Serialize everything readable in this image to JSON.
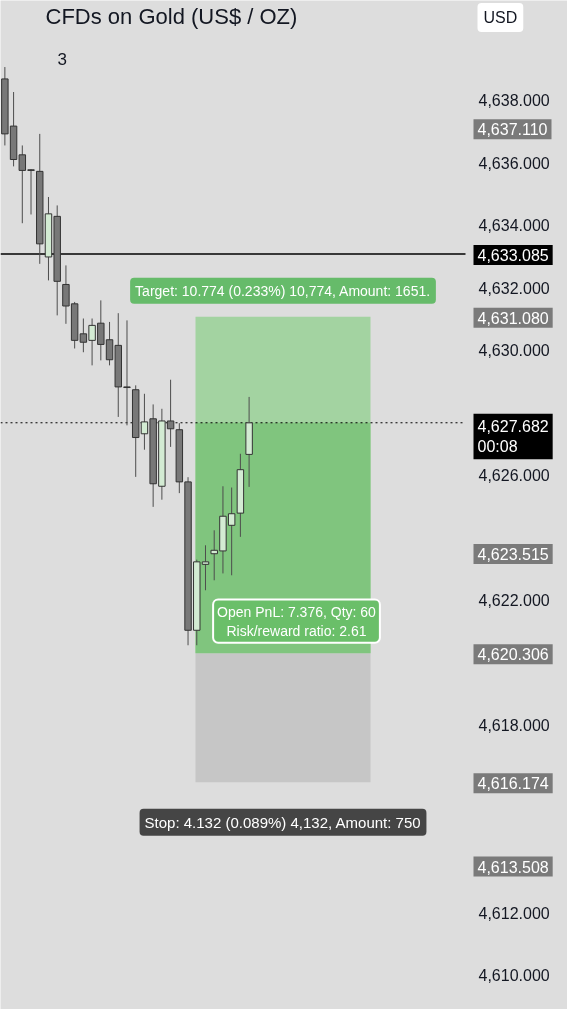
{
  "chart_data": {
    "type": "candlestick",
    "title": "CFDs on Gold (US$ / OZ)",
    "subtitle": "3",
    "ylabel": "USD",
    "categories": [
      null,
      null,
      null,
      null,
      null,
      null,
      null,
      null,
      null,
      null,
      null,
      null,
      null,
      null,
      null,
      null,
      null,
      null,
      null,
      null,
      null,
      null,
      null,
      null,
      null,
      null,
      null,
      null,
      null,
      null,
      null,
      null,
      null,
      null,
      null,
      null,
      null,
      null,
      null,
      null,
      null,
      null,
      null,
      null,
      null,
      null,
      null,
      null,
      null,
      null,
      null,
      null,
      null,
      null,
      null,
      null,
      null,
      null,
      null,
      null,
      null,
      null,
      null,
      null,
      null
    ],
    "ohlc": [
      [
        4638.69,
        4639.07,
        4636.56,
        4636.93
      ],
      [
        4637.18,
        4638.27,
        4635.89,
        4636.11
      ],
      [
        4636.26,
        4636.56,
        4634.07,
        4635.76
      ],
      [
        4635.78,
        4635.8,
        4634.35,
        4635.76
      ],
      [
        4635.73,
        4636.93,
        4632.77,
        4633.41
      ],
      [
        4632.99,
        4634.91,
        4632.24,
        4634.37
      ],
      [
        4634.29,
        4634.64,
        4631.12,
        4632.21
      ],
      [
        4632.11,
        4632.72,
        4630.85,
        4631.42
      ],
      [
        4631.49,
        4631.55,
        4630.06,
        4630.32
      ],
      [
        4630.53,
        4631.02,
        4629.94,
        4630.26
      ],
      [
        4630.32,
        4631.02,
        4629.52,
        4630.8
      ],
      [
        4630.87,
        4631.6,
        4629.68,
        4630.19
      ],
      [
        4630.34,
        4630.91,
        4629.52,
        4629.7
      ],
      [
        4630.16,
        4631.19,
        4627.87,
        4628.83
      ],
      [
        4628.83,
        4630.96,
        4627.6,
        4628.81
      ],
      [
        4628.74,
        4628.88,
        4625.95,
        4627.21
      ],
      [
        4627.33,
        4628.61,
        4626.82,
        4627.71
      ],
      [
        4627.81,
        4628.27,
        4624.99,
        4625.73
      ],
      [
        4625.65,
        4628.13,
        4625.22,
        4627.74
      ],
      [
        4627.74,
        4629.06,
        4626.91,
        4627.49
      ],
      [
        4627.46,
        4627.67,
        4625.43,
        4625.79
      ],
      [
        4625.79,
        4625.94,
        4620.56,
        4621.04
      ],
      [
        4621.04,
        4623.3,
        4620.56,
        4623.23
      ],
      [
        4623.15,
        4623.76,
        4622.32,
        4623.23
      ],
      [
        4623.49,
        4624.24,
        4622.64,
        4623.6
      ],
      [
        4623.58,
        4625.65,
        4622.86,
        4624.69
      ],
      [
        4624.4,
        4625.61,
        4622.8,
        4624.77
      ],
      [
        4624.79,
        4626.69,
        4624.03,
        4626.18
      ],
      [
        4626.67,
        4628.51,
        4625.63,
        4627.68
      ],
      null,
      null,
      null,
      null,
      null,
      null,
      null,
      null,
      null,
      null,
      null,
      null,
      null,
      null,
      null,
      null,
      null,
      null,
      null,
      null,
      null,
      null,
      null,
      null,
      null,
      null,
      null,
      null,
      null,
      null,
      null,
      null,
      null,
      null,
      null,
      null
    ],
    "colors": [
      "#787878",
      "#787878",
      "#787878",
      "#787878",
      "#787878",
      "#d3ebd3",
      "#787878",
      "#787878",
      "#787878",
      "#787878",
      "#d3ebd3",
      "#787878",
      "#787878",
      "#787878",
      "#787878",
      "#787878",
      "#d3ebd3",
      "#787878",
      "#d3ebd3",
      "#787878",
      "#787878",
      "#787878",
      "#d3ebd3",
      "#d3ebd3",
      "#d3ebd3",
      "#d3ebd3",
      "#d3ebd3",
      "#d3ebd3",
      "#d3ebd3",
      null,
      null,
      null,
      null,
      null,
      null,
      null,
      null,
      null,
      null,
      null,
      null,
      null,
      null,
      null,
      null,
      null,
      null,
      null,
      null,
      null,
      null,
      null,
      null,
      null,
      null,
      null,
      null,
      null,
      null,
      null,
      null,
      null,
      null,
      null,
      null
    ],
    "ylim": [
      4608.9,
      4641.2
    ],
    "yticks": [
      {
        "value": 4610,
        "label": "4,610.000"
      },
      {
        "value": 4612,
        "label": "4,612.000"
      },
      {
        "value": 4618,
        "label": "4,618.000"
      },
      {
        "value": 4622,
        "label": "4,622.000"
      },
      {
        "value": 4626,
        "label": "4,626.000"
      },
      {
        "value": 4630,
        "label": "4,630.000"
      },
      {
        "value": 4632,
        "label": "4,632.000"
      },
      {
        "value": 4634,
        "label": "4,634.000"
      },
      {
        "value": 4636,
        "label": "4,636.000"
      },
      {
        "value": 4638,
        "label": "4,638.000"
      }
    ],
    "grid": false,
    "ref_lines": [
      {
        "axis": "y",
        "value": 4633.085,
        "label": "4,633.085",
        "color": "#000000",
        "line_style": "solid"
      },
      {
        "axis": "y",
        "value": 4627.682,
        "label": "4,627.682\n00:08",
        "color": "#000000",
        "line_style": "dotted"
      }
    ],
    "bands": [
      {
        "axis": "y",
        "from": 4620.306,
        "to": 4631.08,
        "color": "#a3d3a1",
        "label": "Target: 10.774 (0.233%) 10,774, Amount: 1651."
      },
      {
        "axis": "y",
        "from": 4616.174,
        "to": 4620.306,
        "color": "#c6c6c6",
        "label": "Stop: 4.132 (0.089%) 4,132, Amount: 750"
      },
      {
        "axis": "y",
        "from": 4620.306,
        "to": 4627.682,
        "color": "#80c57e"
      }
    ],
    "annotations": [
      "Open PnL: 7.376, Qty: 60\nRisk/reward ratio: 2.61",
      "4,637.110",
      "4,631.080",
      "4,623.515",
      "4,620.306",
      "4,616.174",
      "4,613.508"
    ]
  }
}
